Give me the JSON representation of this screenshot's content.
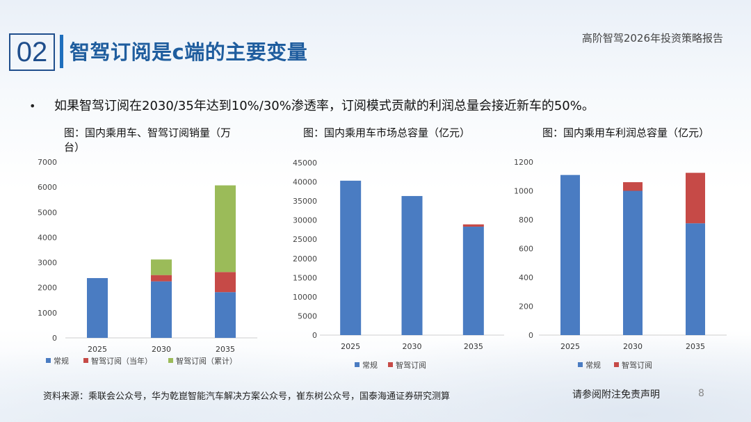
{
  "header": {
    "section_number": "02",
    "title": "智驾订阅是c端的主要变量",
    "report_name": "高阶智驾2026年投资策略报告"
  },
  "bullet": {
    "marker": "•",
    "text": "如果智驾订阅在2030/35年达到10%/30%渗透率，订阅模式贡献的利润总量会接近新车的50%。"
  },
  "colors": {
    "blue": "#4a7cc2",
    "red": "#c64a47",
    "green": "#9bbb59",
    "title": "#1f5d9e"
  },
  "chart_data": [
    {
      "type": "bar",
      "stacked": true,
      "title": "图：国内乘用车、智驾订阅销量（万台）",
      "title_lines": [
        "图：国内乘用车、智驾订阅销量（万",
        "台）"
      ],
      "categories": [
        "2025",
        "2030",
        "2035"
      ],
      "ylim": [
        0,
        7000
      ],
      "yticks": [
        0,
        1000,
        2000,
        3000,
        4000,
        5000,
        6000,
        7000
      ],
      "grid": false,
      "legend_position": "bottom",
      "series": [
        {
          "name": "常规",
          "color": "#4a7cc2",
          "values": [
            2380,
            2250,
            1820
          ]
        },
        {
          "name": "智驾订阅（当年）",
          "color": "#c64a47",
          "values": [
            0,
            250,
            800
          ]
        },
        {
          "name": "智驾订阅（累计）",
          "color": "#9bbb59",
          "values": [
            0,
            620,
            3450
          ]
        }
      ]
    },
    {
      "type": "bar",
      "stacked": true,
      "title": "图：国内乘用车市场总容量（亿元）",
      "categories": [
        "2025",
        "2030",
        "2035"
      ],
      "ylim": [
        0,
        45000
      ],
      "yticks": [
        0,
        5000,
        10000,
        15000,
        20000,
        25000,
        30000,
        35000,
        40000,
        45000
      ],
      "grid": false,
      "legend_position": "bottom",
      "series": [
        {
          "name": "常规",
          "color": "#4a7cc2",
          "values": [
            40300,
            36300,
            28300
          ]
        },
        {
          "name": "智驾订阅",
          "color": "#c64a47",
          "values": [
            0,
            0,
            600
          ]
        }
      ]
    },
    {
      "type": "bar",
      "stacked": true,
      "title": "图：国内乘用车利润总容量（亿元）",
      "categories": [
        "2025",
        "2030",
        "2035"
      ],
      "ylim": [
        0,
        1200
      ],
      "yticks": [
        0,
        200,
        400,
        600,
        800,
        1000,
        1200
      ],
      "grid": false,
      "legend_position": "bottom",
      "series": [
        {
          "name": "常规",
          "color": "#4a7cc2",
          "values": [
            1110,
            1000,
            775
          ]
        },
        {
          "name": "智驾订阅",
          "color": "#c64a47",
          "values": [
            0,
            60,
            350
          ]
        }
      ]
    }
  ],
  "footer": {
    "source": "资料来源：乘联会公众号，华为乾崑智能汽车解决方案公众号，崔东树公众号，国泰海通证券研究测算",
    "disclaimer": "请参阅附注免责声明",
    "page_number": "8"
  }
}
